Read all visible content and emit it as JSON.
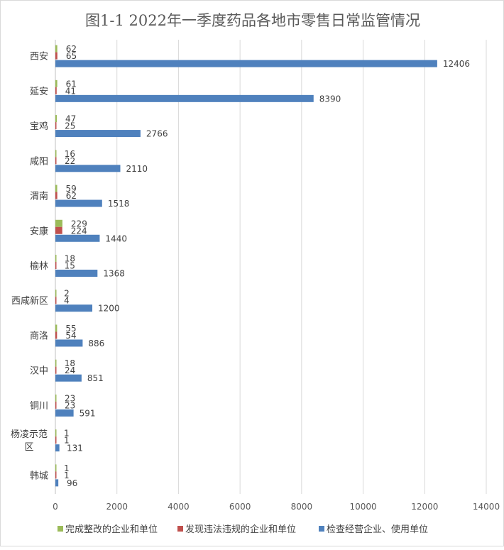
{
  "chart_data": {
    "type": "bar",
    "orientation": "horizontal",
    "title": "图1-1  2022年一季度药品各地市零售日常监管情况",
    "categories": [
      "西安",
      "延安",
      "宝鸡",
      "咸阳",
      "渭南",
      "安康",
      "榆林",
      "西咸新区",
      "商洛",
      "汉中",
      "铜川",
      "杨凌示范区",
      "韩城"
    ],
    "series": [
      {
        "name": "完成整改的企业和单位",
        "color": "#9BBB59",
        "values": [
          62,
          61,
          47,
          16,
          59,
          229,
          18,
          2,
          55,
          18,
          23,
          1,
          1
        ]
      },
      {
        "name": "发现违法违规的企业和单位",
        "color": "#C0504D",
        "values": [
          65,
          41,
          25,
          22,
          62,
          224,
          15,
          4,
          54,
          24,
          23,
          1,
          1
        ]
      },
      {
        "name": "检查经营企业、使用单位",
        "color": "#4F81BD",
        "values": [
          12406,
          8390,
          2766,
          2110,
          1518,
          1440,
          1368,
          1200,
          886,
          851,
          591,
          131,
          96
        ]
      }
    ],
    "xlim": [
      0,
      14000
    ],
    "xticks": [
      "0",
      "2000",
      "4000",
      "6000",
      "8000",
      "10000",
      "12000",
      "14000"
    ],
    "grid": true,
    "legend_position": "bottom"
  }
}
